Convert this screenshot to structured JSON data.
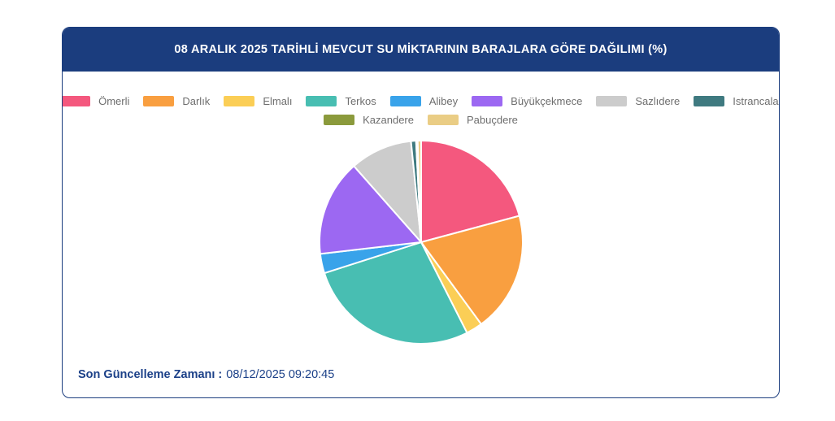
{
  "header": {
    "title": "08 ARALIK 2025 TARİHLİ MEVCUT SU MİKTARININ BARAJLARA GÖRE DAĞILIMI (%)",
    "bg_color": "#1B3D7E"
  },
  "footer": {
    "label": "Son Güncelleme Zamanı :",
    "value": "08/12/2025 09:20:45"
  },
  "chart_data": {
    "type": "pie",
    "title": "08 ARALIK 2025 TARİHLİ MEVCUT SU MİKTARININ BARAJLARA GÖRE DAĞILIMI (%)",
    "unit": "%",
    "legend_position": "top",
    "legend_rows": [
      8,
      2
    ],
    "start_angle_deg": 0,
    "direction": "clockwise",
    "slice_border_color": "#ffffff",
    "slices": [
      {
        "label": "Ömerli",
        "value": 20.8,
        "color": "#F4587E"
      },
      {
        "label": "Darlık",
        "value": 19.1,
        "color": "#F99F40"
      },
      {
        "label": "Elmalı",
        "value": 2.6,
        "color": "#FBCE56"
      },
      {
        "label": "Terkos",
        "value": 27.5,
        "color": "#48BEB2"
      },
      {
        "label": "Alibey",
        "value": 3.1,
        "color": "#39A3EA"
      },
      {
        "label": "Büyükçekmece",
        "value": 15.3,
        "color": "#9C68F2"
      },
      {
        "label": "Sazlıdere",
        "value": 9.9,
        "color": "#CCCCCC"
      },
      {
        "label": "Istrancalar",
        "value": 0.8,
        "color": "#3F7A80"
      },
      {
        "label": "Kazandere",
        "value": 0.25,
        "color": "#8B9A3C"
      },
      {
        "label": "Pabuçdere",
        "value": 0.55,
        "color": "#EACD85"
      }
    ]
  }
}
